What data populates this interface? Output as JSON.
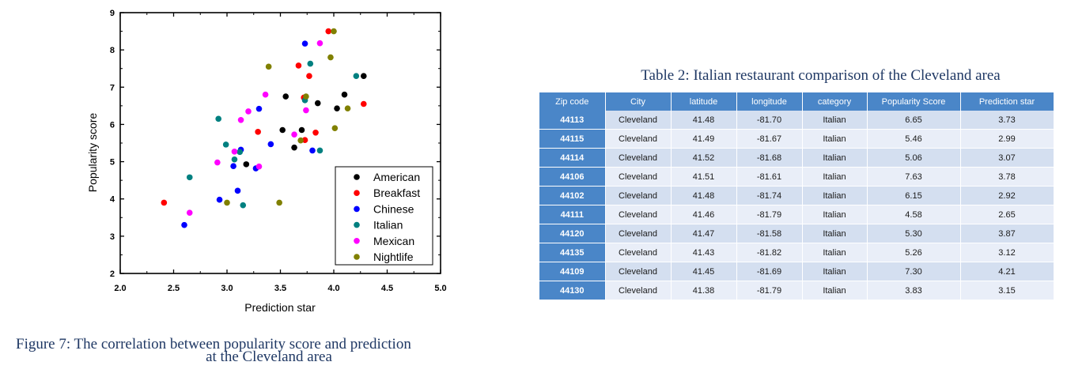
{
  "chart_data": {
    "type": "scatter",
    "xlabel": "Prediction star",
    "ylabel": "Popularity score",
    "xlim": [
      2.0,
      5.0
    ],
    "ylim": [
      2,
      9
    ],
    "x_ticks": [
      "2.0",
      "2.5",
      "3.0",
      "3.5",
      "4.0",
      "4.5",
      "5.0"
    ],
    "y_ticks": [
      "2",
      "3",
      "4",
      "5",
      "6",
      "7",
      "8",
      "9"
    ],
    "legend_position": "bottom-right",
    "series": [
      {
        "name": "American",
        "color": "#000000",
        "points": [
          [
            3.52,
            5.85
          ],
          [
            3.55,
            6.75
          ],
          [
            3.63,
            5.38
          ],
          [
            3.7,
            5.85
          ],
          [
            3.85,
            6.57
          ],
          [
            4.03,
            6.43
          ],
          [
            4.1,
            6.8
          ],
          [
            4.28,
            7.3
          ],
          [
            3.18,
            4.93
          ]
        ]
      },
      {
        "name": "Breakfast",
        "color": "#ff0000",
        "points": [
          [
            2.41,
            3.9
          ],
          [
            3.29,
            5.8
          ],
          [
            3.67,
            7.58
          ],
          [
            3.72,
            6.72
          ],
          [
            3.73,
            5.58
          ],
          [
            3.77,
            7.3
          ],
          [
            3.83,
            5.78
          ],
          [
            3.95,
            8.5
          ],
          [
            4.28,
            6.55
          ]
        ]
      },
      {
        "name": "Chinese",
        "color": "#0000ff",
        "points": [
          [
            2.6,
            3.3
          ],
          [
            2.93,
            3.98
          ],
          [
            3.06,
            4.88
          ],
          [
            3.1,
            4.22
          ],
          [
            3.13,
            5.32
          ],
          [
            3.27,
            4.82
          ],
          [
            3.3,
            6.42
          ],
          [
            3.41,
            5.47
          ],
          [
            3.73,
            8.17
          ],
          [
            3.8,
            5.3
          ]
        ]
      },
      {
        "name": "Italian",
        "color": "#008080",
        "points": [
          [
            2.65,
            4.58
          ],
          [
            2.92,
            6.15
          ],
          [
            2.99,
            5.46
          ],
          [
            3.07,
            5.06
          ],
          [
            3.12,
            5.26
          ],
          [
            3.15,
            3.83
          ],
          [
            3.73,
            6.65
          ],
          [
            3.78,
            7.63
          ],
          [
            3.87,
            5.3
          ],
          [
            4.21,
            7.3
          ]
        ]
      },
      {
        "name": "Mexican",
        "color": "#ff00ff",
        "points": [
          [
            2.65,
            3.63
          ],
          [
            2.91,
            4.98
          ],
          [
            3.07,
            5.27
          ],
          [
            3.13,
            6.12
          ],
          [
            3.2,
            6.35
          ],
          [
            3.3,
            4.87
          ],
          [
            3.36,
            6.8
          ],
          [
            3.63,
            5.73
          ],
          [
            3.74,
            6.38
          ],
          [
            3.87,
            8.18
          ]
        ]
      },
      {
        "name": "Nightlife",
        "color": "#808000",
        "points": [
          [
            3.0,
            3.9
          ],
          [
            3.39,
            7.55
          ],
          [
            3.49,
            3.9
          ],
          [
            3.69,
            5.57
          ],
          [
            3.74,
            6.75
          ],
          [
            3.97,
            7.8
          ],
          [
            4.0,
            8.5
          ],
          [
            4.01,
            5.9
          ],
          [
            4.13,
            6.43
          ]
        ]
      }
    ]
  },
  "figure_caption": {
    "line1": "Figure 7: The correlation between popularity score and prediction",
    "line2": "at the Cleveland area"
  },
  "table": {
    "caption": "Table 2: Italian restaurant comparison of the Cleveland area",
    "headers": [
      "Zip code",
      "City",
      "latitude",
      "longitude",
      "category",
      "Popularity Score",
      "Prediction star"
    ],
    "rows": [
      [
        "44113",
        "Cleveland",
        "41.48",
        "-81.70",
        "Italian",
        "6.65",
        "3.73"
      ],
      [
        "44115",
        "Cleveland",
        "41.49",
        "-81.67",
        "Italian",
        "5.46",
        "2.99"
      ],
      [
        "44114",
        "Cleveland",
        "41.52",
        "-81.68",
        "Italian",
        "5.06",
        "3.07"
      ],
      [
        "44106",
        "Cleveland",
        "41.51",
        "-81.61",
        "Italian",
        "7.63",
        "3.78"
      ],
      [
        "44102",
        "Cleveland",
        "41.48",
        "-81.74",
        "Italian",
        "6.15",
        "2.92"
      ],
      [
        "44111",
        "Cleveland",
        "41.46",
        "-81.79",
        "Italian",
        "4.58",
        "2.65"
      ],
      [
        "44120",
        "Cleveland",
        "41.47",
        "-81.58",
        "Italian",
        "5.30",
        "3.87"
      ],
      [
        "44135",
        "Cleveland",
        "41.43",
        "-81.82",
        "Italian",
        "5.26",
        "3.12"
      ],
      [
        "44109",
        "Cleveland",
        "41.45",
        "-81.69",
        "Italian",
        "7.30",
        "4.21"
      ],
      [
        "44130",
        "Cleveland",
        "41.38",
        "-81.79",
        "Italian",
        "3.83",
        "3.15"
      ]
    ]
  }
}
